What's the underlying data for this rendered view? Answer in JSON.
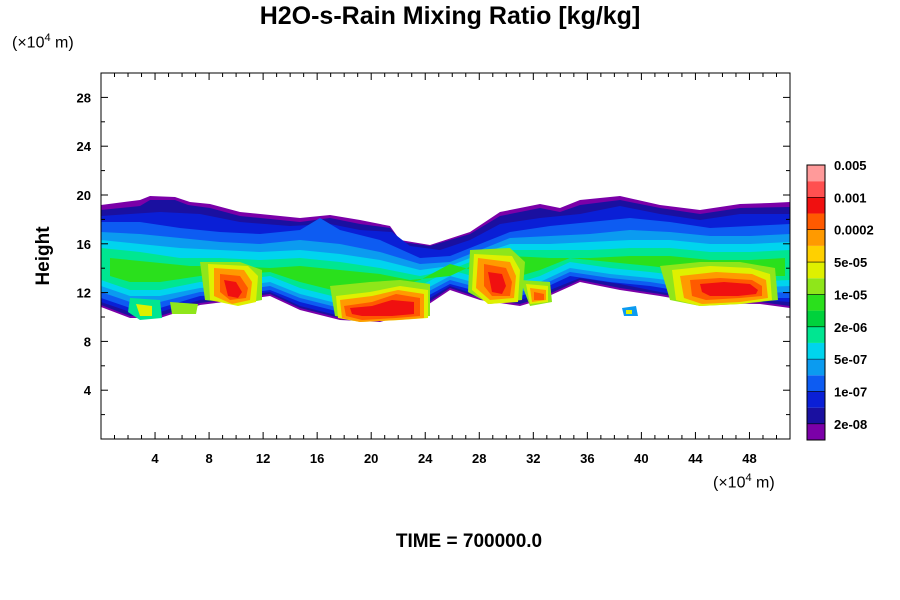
{
  "chart_data": {
    "type": "heatmap",
    "title": "H2O-s-Rain Mixing Ratio [kg/kg]",
    "xlabel": "",
    "ylabel": "Height",
    "x_unit": {
      "prefix": "(×10",
      "exp": "4",
      "suffix": " m)"
    },
    "y_unit": {
      "prefix": "(×10",
      "exp": "4",
      "suffix": " m)"
    },
    "xlim": [
      0,
      51
    ],
    "ylim": [
      0,
      30
    ],
    "x_ticks": [
      4,
      8,
      12,
      16,
      20,
      24,
      28,
      32,
      36,
      40,
      44,
      48
    ],
    "y_ticks": [
      4,
      8,
      12,
      16,
      20,
      24,
      28
    ],
    "colorbar": {
      "levels": [
        "2e-08",
        "1e-07",
        "5e-07",
        "2e-06",
        "1e-05",
        "5e-05",
        "0.0002",
        "0.001",
        "0.005"
      ],
      "colors": [
        "#7b00a8",
        "#1a10a0",
        "#0a1fd6",
        "#0d5cf2",
        "#0b9bf0",
        "#00d4ee",
        "#00e691",
        "#00d23c",
        "#2ae01c",
        "#8fe61a",
        "#dff000",
        "#ffd000",
        "#ff9a00",
        "#ff5a00",
        "#f01010",
        "#ff5050",
        "#ff9a9a"
      ]
    },
    "cloud_regions": [
      {
        "x0": 0,
        "x1": 51,
        "y0": 11.5,
        "y1": 18.5,
        "level": "5e-07"
      },
      {
        "x0": 9,
        "x1": 11,
        "y0": 11,
        "y1": 13.5,
        "level": "0.001"
      },
      {
        "x0": 18,
        "x1": 24,
        "y0": 10,
        "y1": 12,
        "level": "0.001"
      },
      {
        "x0": 28,
        "x1": 30,
        "y0": 12,
        "y1": 14,
        "level": "0.001"
      },
      {
        "x0": 45,
        "x1": 48,
        "y0": 11.5,
        "y1": 13,
        "level": "0.001"
      }
    ]
  },
  "footer": {
    "time_label": "TIME = 700000.0"
  }
}
